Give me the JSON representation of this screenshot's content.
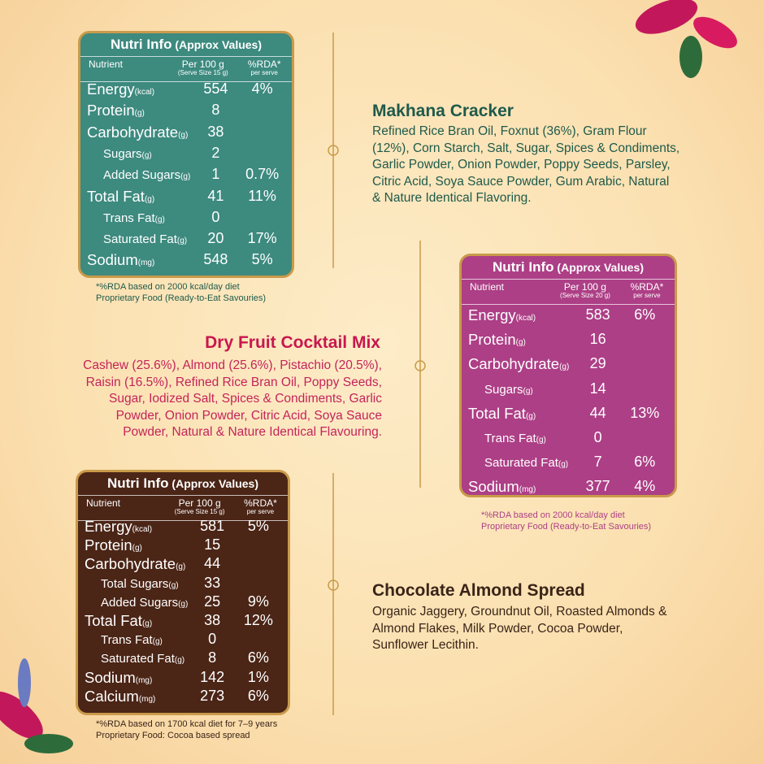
{
  "panels": [
    {
      "title": "Nutri Info",
      "subtitle": "(Approx Values)",
      "header": {
        "nutrient": "Nutrient",
        "per100": "Per 100 g",
        "serve": "(Serve Size 15 g)",
        "rda": "%RDA*",
        "rda_sub": "per serve"
      },
      "rows": [
        {
          "name": "Energy",
          "unit": "(kcal)",
          "per100": "554",
          "rda": "4%"
        },
        {
          "name": "Protein",
          "unit": "(g)",
          "per100": "8"
        },
        {
          "name": "Carbohydrate",
          "unit": "(g)",
          "per100": "38"
        },
        {
          "name": "Sugars",
          "unit": "(g)",
          "per100": "2"
        },
        {
          "name": "Added Sugars",
          "unit": "(g)",
          "per100": "1",
          "rda": "0.7%"
        },
        {
          "name": "Total Fat",
          "unit": "(g)",
          "per100": "41",
          "rda": "11%"
        },
        {
          "name": "Trans Fat",
          "unit": "(g)",
          "per100": "0"
        },
        {
          "name": "Saturated Fat",
          "unit": "(g)",
          "per100": "20",
          "rda": "17%"
        },
        {
          "name": "Sodium",
          "unit": "(mg)",
          "per100": "548",
          "rda": "5%"
        }
      ],
      "footnotes": [
        "*%RDA based on 2000 kcal/day diet",
        "Proprietary Food (Ready-to-Eat Savouries)"
      ]
    },
    {
      "title": "Nutri Info",
      "subtitle": "(Approx Values)",
      "header": {
        "nutrient": "Nutrient",
        "per100": "Per 100 g",
        "serve": "(Serve Size 20 g)",
        "rda": "%RDA*",
        "rda_sub": "per serve"
      },
      "rows": [
        {
          "name": "Energy",
          "unit": "(kcal)",
          "per100": "583",
          "rda": "6%"
        },
        {
          "name": "Protein",
          "unit": "(g)",
          "per100": "16"
        },
        {
          "name": "Carbohydrate",
          "unit": "(g)",
          "per100": "29"
        },
        {
          "name": "Sugars",
          "unit": "(g)",
          "per100": "14"
        },
        {
          "name": "Total Fat",
          "unit": "(g)",
          "per100": "44",
          "rda": "13%"
        },
        {
          "name": "Trans Fat",
          "unit": "(g)",
          "per100": "0"
        },
        {
          "name": "Saturated Fat",
          "unit": "(g)",
          "per100": "7",
          "rda": "6%"
        },
        {
          "name": "Sodium",
          "unit": "(mg)",
          "per100": "377",
          "rda": "4%"
        }
      ],
      "footnotes": [
        "*%RDA based on 2000 kcal/day diet",
        "Proprietary Food (Ready-to-Eat Savouries)"
      ]
    },
    {
      "title": "Nutri Info",
      "subtitle": "(Approx Values)",
      "header": {
        "nutrient": "Nutrient",
        "per100": "Per 100 g",
        "serve": "(Serve Size 15 g)",
        "rda": "%RDA*",
        "rda_sub": "per serve"
      },
      "rows": [
        {
          "name": "Energy",
          "unit": "(kcal)",
          "per100": "581",
          "rda": "5%"
        },
        {
          "name": "Protein",
          "unit": "(g)",
          "per100": "15"
        },
        {
          "name": "Carbohydrate",
          "unit": "(g)",
          "per100": "44"
        },
        {
          "name": "Total Sugars",
          "unit": "(g)",
          "per100": "33"
        },
        {
          "name": "Added Sugars",
          "unit": "(g)",
          "per100": "25",
          "rda": "9%"
        },
        {
          "name": "Total Fat",
          "unit": "(g)",
          "per100": "38",
          "rda": "12%"
        },
        {
          "name": "Trans Fat",
          "unit": "(g)",
          "per100": "0"
        },
        {
          "name": "Saturated Fat",
          "unit": "(g)",
          "per100": "8",
          "rda": "6%"
        },
        {
          "name": "Sodium",
          "unit": "(mg)",
          "per100": "142",
          "rda": "1%"
        },
        {
          "name": "Calcium",
          "unit": "(mg)",
          "per100": "273",
          "rda": "6%"
        }
      ],
      "footnotes": [
        "*%RDA based on 1700 kcal diet for 7–9 years",
        "Proprietary Food: Cocoa based spread"
      ]
    }
  ],
  "products": [
    {
      "name": "Makhana Cracker",
      "ingredients": [
        "Refined Rice Bran Oil, Foxnut (36%), Gram Flour",
        "(12%), Corn Starch, Salt, Sugar, Spices & Condiments,",
        "Garlic Powder, Onion Powder, Poppy Seeds, Parsley,",
        "Citric Acid, Soya Sauce Powder, Gum Arabic, Natural",
        "& Nature Identical Flavoring."
      ]
    },
    {
      "name": "Dry Fruit Cocktail Mix",
      "ingredients": [
        "Cashew (25.6%), Almond (25.6%), Pistachio (20.5%),",
        "Raisin (16.5%), Refined Rice Bran Oil, Poppy Seeds,",
        "Sugar, Iodized Salt, Spices & Condiments, Garlic",
        "Powder, Onion Powder, Citric Acid, Soya Sauce",
        "Powder, Natural & Nature Identical Flavouring."
      ]
    },
    {
      "name": "Chocolate Almond Spread",
      "ingredients": [
        "Organic Jaggery, Groundnut Oil, Roasted Almonds &",
        "Almond Flakes, Milk Powder, Cocoa Powder,",
        "Sunflower Lecithin."
      ]
    }
  ]
}
